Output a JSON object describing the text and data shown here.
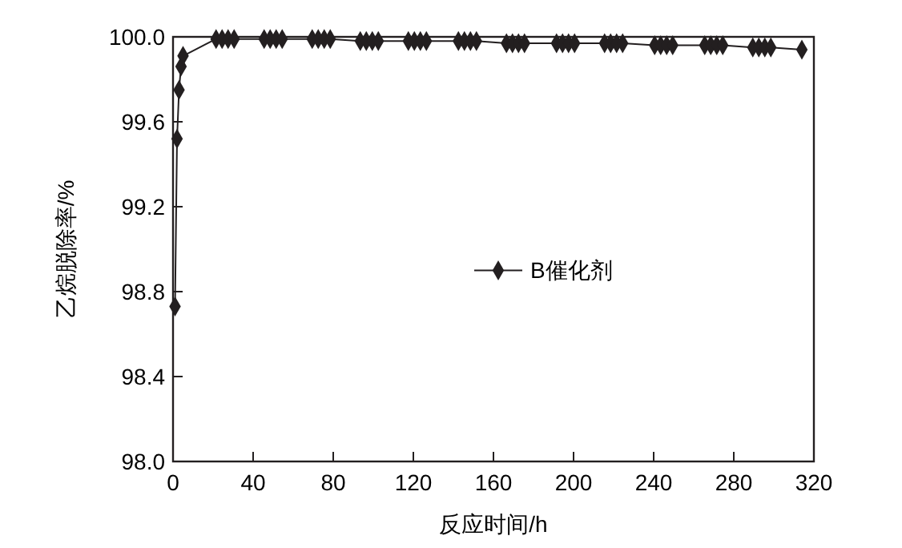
{
  "chart_data": {
    "type": "line",
    "xlabel": "反应时间/h",
    "ylabel": "乙烷脱除率/%",
    "xlim": [
      0,
      320
    ],
    "xticks": [
      0,
      40,
      80,
      120,
      160,
      200,
      240,
      280,
      320
    ],
    "ylim": [
      98,
      100
    ],
    "yticks": [
      {
        "value": 98,
        "label": "98.0"
      },
      {
        "value": 98.4,
        "label": "98.4"
      },
      {
        "value": 98.8,
        "label": "98.8"
      },
      {
        "value": 99.2,
        "label": "99.2"
      },
      {
        "value": 99.6,
        "label": "99.6"
      },
      {
        "value": 100,
        "label": "100.0"
      }
    ],
    "x": [
      1,
      2,
      3,
      4,
      5,
      21.5,
      24.5,
      27.5,
      30.5,
      45.5,
      48.5,
      51.5,
      54.5,
      69.5,
      72.5,
      75.5,
      78.5,
      93.5,
      96.5,
      99.5,
      102.5,
      117.5,
      120.5,
      123.5,
      126.5,
      142.5,
      145.5,
      148.5,
      151.5,
      166.5,
      169.5,
      172.5,
      175.5,
      191.5,
      194.5,
      197.5,
      200.5,
      215.5,
      218.5,
      221.5,
      224.5,
      240.5,
      243.5,
      246.5,
      249.5,
      265.5,
      268.5,
      271.5,
      274.5,
      289.5,
      292.5,
      295.5,
      298.5,
      314
    ],
    "series": [
      {
        "name": "B催化剂",
        "color": "#231f20",
        "values": [
          98.73,
          99.52,
          99.75,
          99.86,
          99.91,
          99.99,
          99.99,
          99.99,
          99.99,
          99.99,
          99.99,
          99.99,
          99.99,
          99.99,
          99.99,
          99.99,
          99.99,
          99.98,
          99.98,
          99.98,
          99.98,
          99.98,
          99.98,
          99.98,
          99.98,
          99.98,
          99.98,
          99.98,
          99.98,
          99.97,
          99.97,
          99.97,
          99.97,
          99.97,
          99.97,
          99.97,
          99.97,
          99.97,
          99.97,
          99.97,
          99.97,
          99.96,
          99.96,
          99.96,
          99.96,
          99.96,
          99.96,
          99.96,
          99.96,
          99.95,
          99.95,
          99.95,
          99.95,
          99.94
        ]
      }
    ],
    "marker": "diamond",
    "line_style": "solid",
    "legend": "center",
    "grid": false
  }
}
